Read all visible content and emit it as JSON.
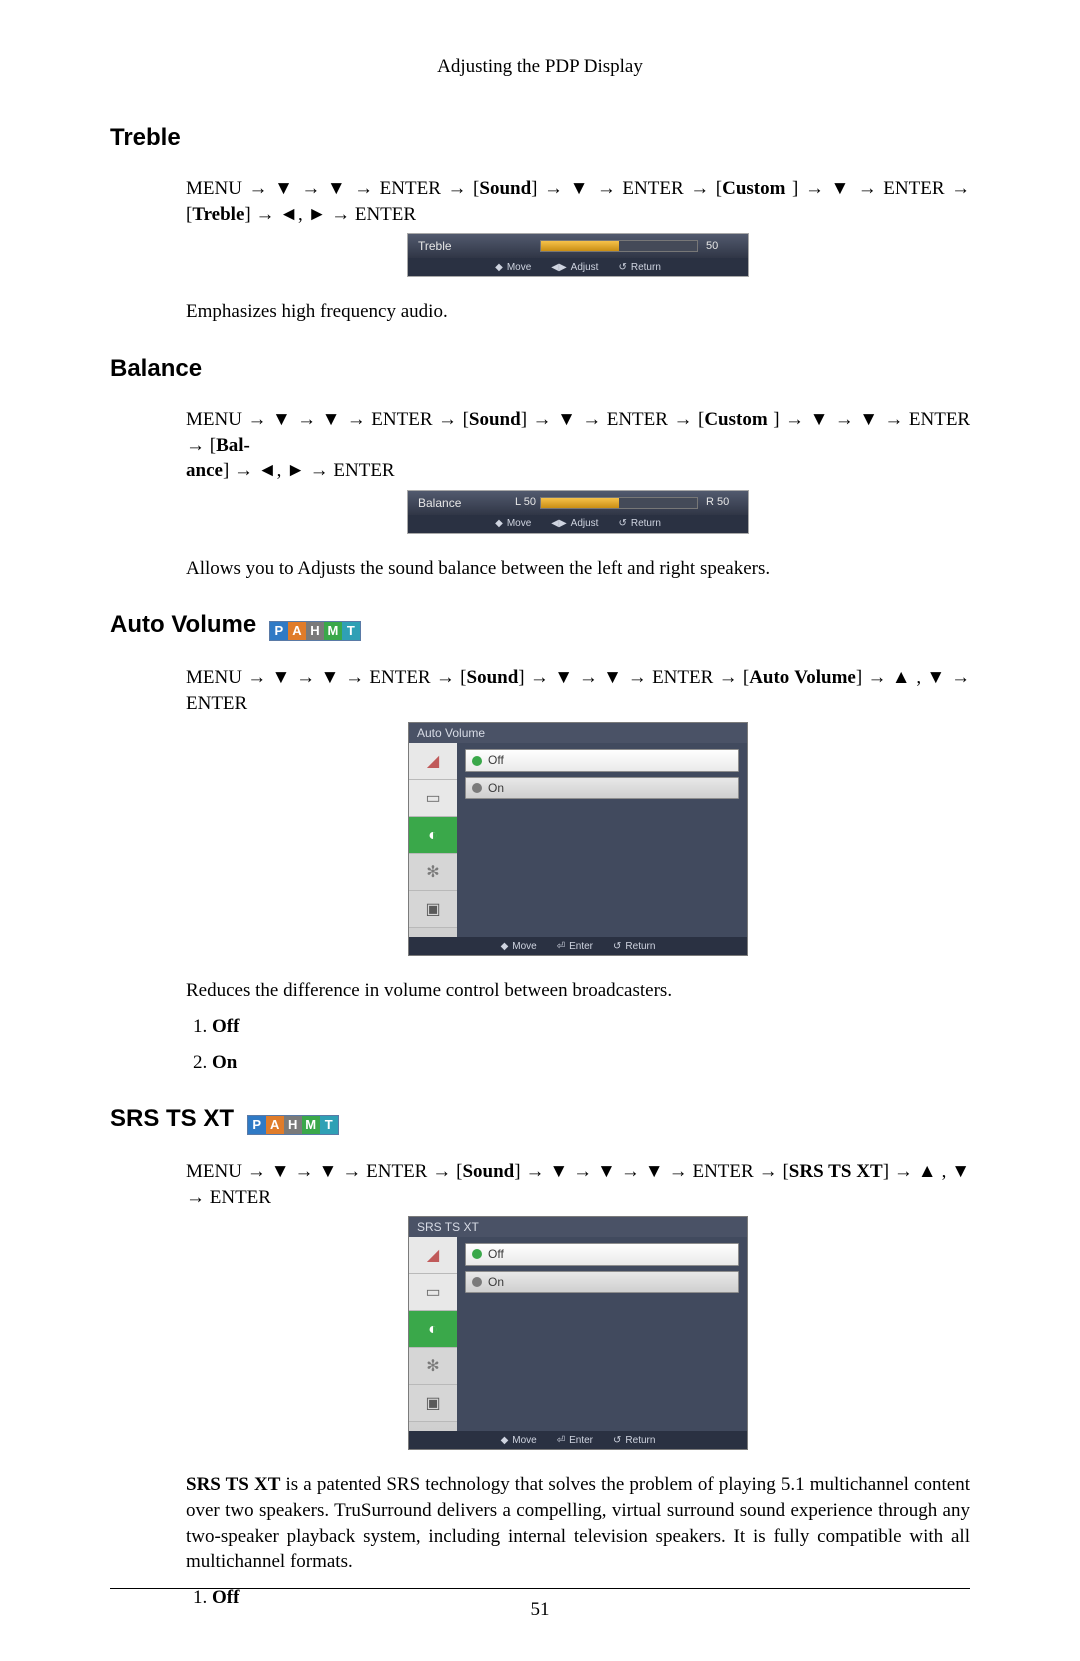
{
  "header": {
    "title": "Adjusting the PDP Display"
  },
  "footer": {
    "page_number": "51"
  },
  "badge": {
    "letters": [
      "P",
      "A",
      "H",
      "M",
      "T"
    ],
    "colors": [
      "#2f7ac5",
      "#e07c2a",
      "#7a7a7a",
      "#3aa84a",
      "#2fa0b5"
    ]
  },
  "osd_footer": {
    "move": "Move",
    "adjust": "Adjust",
    "enter": "Enter",
    "return": "Return"
  },
  "sections": {
    "treble": {
      "title": "Treble",
      "nav": {
        "p0": "MENU → ",
        "p1": " → ",
        "p2": " → ENTER → [",
        "b0": "Sound",
        "p3": "] → ",
        "p4": " → ENTER → [",
        "b1": "Custom",
        "p5": " ] → ",
        "p6": " → ENTER → [",
        "b2": "Treble",
        "p7": "] → ",
        "p8": ", ",
        "p9": " → ENTER"
      },
      "osd": {
        "label": "Treble",
        "value": "50",
        "fill_pct": 50
      },
      "desc": "Emphasizes high frequency audio."
    },
    "balance": {
      "title": "Balance",
      "nav": {
        "p0": "MENU → ",
        "p1": " → ",
        "p2": " → ENTER → [",
        "b0": "Sound",
        "p3": "] → ",
        "p4": " → ENTER → [",
        "b1": "Custom",
        "p5": " ] → ",
        "p6": " → ",
        "p7": " → ENTER → [",
        "b2": "Bal-",
        "b3": "ance",
        "p8": "] → ",
        "p9": ", ",
        "p10": " → ENTER"
      },
      "osd": {
        "label": "Balance",
        "left": "L 50",
        "right": "R 50",
        "fill_pct": 50
      },
      "desc": "Allows you to Adjusts the sound balance between the left and right speakers."
    },
    "auto_volume": {
      "title": "Auto Volume",
      "nav": {
        "p0": "MENU → ",
        "p1": " → ",
        "p2": " → ENTER → [",
        "b0": "Sound",
        "p3": "] → ",
        "p4": " → ",
        "p5": " → ENTER → [",
        "b1": "Auto Volume",
        "p6": "] → ",
        "p7": " , ",
        "p8": " → ENTER"
      },
      "osd": {
        "title": "Auto Volume",
        "options": [
          "Off",
          "On"
        ],
        "selected_index": 0
      },
      "desc": "Reduces the difference in volume control between broadcasters.",
      "list": [
        "Off",
        "On"
      ]
    },
    "srs": {
      "title": "SRS TS XT",
      "nav": {
        "p0": "MENU → ",
        "p1": " → ",
        "p2": " → ENTER → [",
        "b0": "Sound",
        "p3": "] → ",
        "p4": " → ",
        "p5": " → ",
        "p6": " → ENTER → [",
        "b1": "SRS TS XT",
        "p7": "] → ",
        "p8": " , ",
        "p9": " → ENTER"
      },
      "osd": {
        "title": "SRS TS XT",
        "options": [
          "Off",
          "On"
        ],
        "selected_index": 0
      },
      "desc_lead": "SRS TS XT",
      "desc": " is a patented SRS technology that solves the problem of playing 5.1 multichannel content over two speakers. TruSurround delivers a compelling, virtual surround sound experience through any two-speaker playback system, including internal television speakers. It is fully compatible with all multichannel formats.",
      "list": [
        "Off"
      ]
    }
  }
}
